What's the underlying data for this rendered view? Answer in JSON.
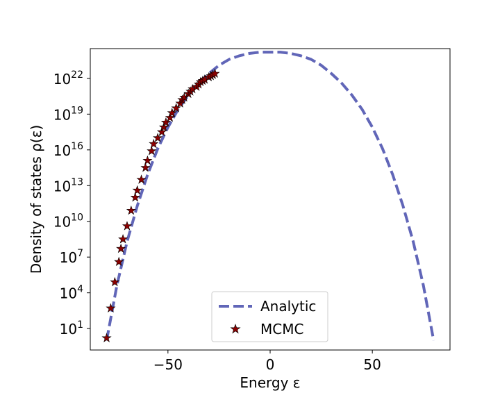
{
  "chart_data": {
    "type": "line",
    "title": "",
    "xlabel": "Energy ε",
    "ylabel": "Density of states ρ(ε)",
    "yscale": "log",
    "xlim": [
      -88,
      88
    ],
    "ylim_log10": [
      -0.8,
      24.5
    ],
    "xticks": [
      -50,
      0,
      50
    ],
    "xtick_labels": [
      "−50",
      "0",
      "50"
    ],
    "yticks_log10": [
      1,
      4,
      7,
      10,
      13,
      16,
      19,
      22
    ],
    "ytick_labels": [
      {
        "base": "10",
        "exp": "1"
      },
      {
        "base": "10",
        "exp": "4"
      },
      {
        "base": "10",
        "exp": "7"
      },
      {
        "base": "10",
        "exp": "10"
      },
      {
        "base": "10",
        "exp": "13"
      },
      {
        "base": "10",
        "exp": "16"
      },
      {
        "base": "10",
        "exp": "19"
      },
      {
        "base": "10",
        "exp": "22"
      }
    ],
    "grid": false,
    "legend_position": "bottom-center",
    "series": [
      {
        "name": "Analytic",
        "style": "dashed",
        "color": "#6166b8",
        "x": [
          -80,
          -75,
          -70,
          -65,
          -60,
          -55,
          -50,
          -45,
          -40,
          -35,
          -30,
          -25,
          -20,
          -15,
          -10,
          -5,
          0,
          5,
          10,
          15,
          20,
          25,
          30,
          35,
          40,
          45,
          50,
          55,
          60,
          65,
          70,
          75,
          80
        ],
        "log10_y": [
          0,
          4.6,
          8.3,
          11.3,
          13.9,
          16.1,
          17.9,
          19.4,
          20.6,
          21.6,
          22.4,
          23.1,
          23.6,
          23.9,
          24.1,
          24.2,
          24.2,
          24.2,
          24.1,
          23.9,
          23.6,
          23.1,
          22.4,
          21.6,
          20.6,
          19.4,
          17.9,
          16.1,
          13.9,
          11.3,
          8.3,
          4.6,
          0
        ]
      },
      {
        "name": "MCMC",
        "style": "markers",
        "marker": "star",
        "color": "#8b0000",
        "x": [
          -80,
          -78,
          -76,
          -74,
          -73,
          -72,
          -70,
          -68,
          -66,
          -65,
          -63,
          -61,
          -60,
          -58,
          -57,
          -55,
          -53,
          -52,
          -51,
          -49,
          -48,
          -46,
          -44,
          -43,
          -42,
          -40,
          -39,
          -38,
          -36,
          -35,
          -34,
          -33,
          -32,
          -30,
          -29,
          -28,
          -27
        ],
        "log10_y": [
          0.2,
          2.7,
          4.9,
          6.6,
          7.7,
          8.5,
          9.6,
          10.9,
          12.0,
          12.6,
          13.5,
          14.5,
          15.1,
          15.9,
          16.5,
          17.0,
          17.5,
          17.9,
          18.3,
          18.7,
          19.1,
          19.5,
          19.9,
          20.2,
          20.4,
          20.7,
          20.9,
          21.1,
          21.3,
          21.5,
          21.7,
          21.8,
          21.9,
          22.1,
          22.2,
          22.3,
          22.4
        ]
      }
    ]
  }
}
